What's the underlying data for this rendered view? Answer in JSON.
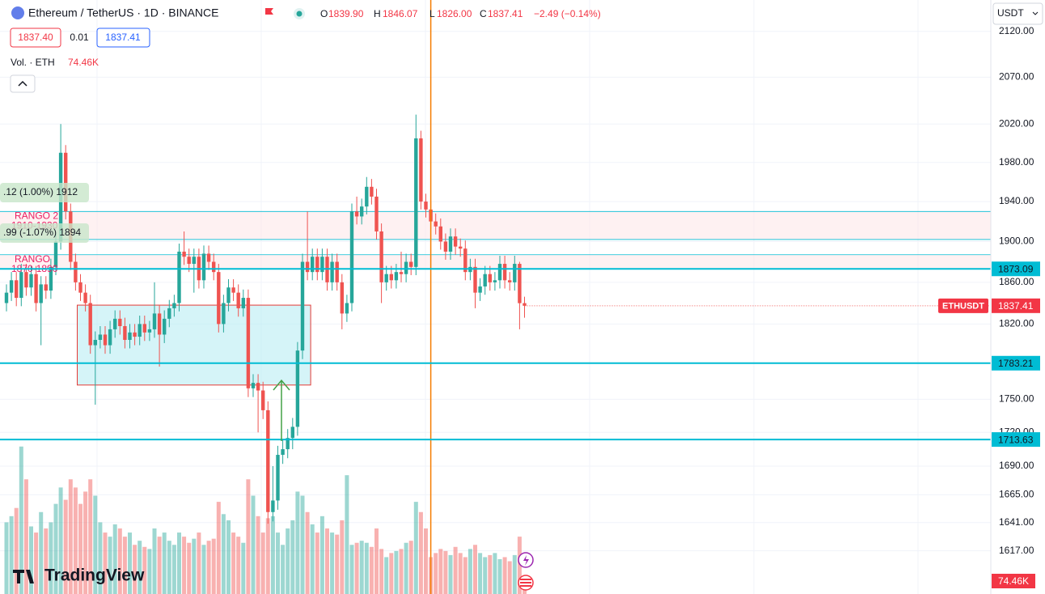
{
  "header": {
    "title": "Ethereum / TetherUS · 1D · BINANCE",
    "ohlc": [
      {
        "key": "O",
        "value": "1839.90"
      },
      {
        "key": "H",
        "value": "1846.07"
      },
      {
        "key": "L",
        "value": "1826.00"
      },
      {
        "key": "C",
        "value": "1837.41"
      }
    ],
    "change": "−2.49 (−0.14%)",
    "bid": "1837.40",
    "spread": "0.01",
    "ask": "1837.41",
    "volume_title": "Vol. · ETH",
    "volume_value": "74.46K",
    "currency": "USDT",
    "brand": "TradingView",
    "symbol_badge": "ETHUSDT"
  },
  "chart_data": {
    "type": "candlestick",
    "log_scale": true,
    "grid": true,
    "up_color": "#26a69a",
    "down_color": "#ef5350",
    "ylim": [
      1581,
      2155
    ],
    "yticks": [
      {
        "value": 2120,
        "label": "2120.00"
      },
      {
        "value": 2070,
        "label": "2070.00"
      },
      {
        "value": 2020,
        "label": "2020.00"
      },
      {
        "value": 1980,
        "label": "1980.00"
      },
      {
        "value": 1940,
        "label": "1940.00"
      },
      {
        "value": 1900,
        "label": "1900.00"
      },
      {
        "value": 1860,
        "label": "1860.00"
      },
      {
        "value": 1820,
        "label": "1820.00"
      },
      {
        "value": 1750,
        "label": "1750.00"
      },
      {
        "value": 1720,
        "label": "1720.00"
      },
      {
        "value": 1690,
        "label": "1690.00"
      },
      {
        "value": 1665,
        "label": "1665.00"
      },
      {
        "value": 1641,
        "label": "1641.00"
      },
      {
        "value": 1617,
        "label": "1617.00"
      }
    ],
    "open": [
      1840,
      1850,
      1862,
      1845,
      1870,
      1855,
      1868,
      1840,
      1858,
      1852,
      1875,
      1900,
      1990,
      1930,
      1880,
      1860,
      1850,
      1840,
      1800,
      1805,
      1810,
      1800,
      1815,
      1825,
      1818,
      1805,
      1812,
      1808,
      1820,
      1812,
      1815,
      1830,
      1810,
      1825,
      1835,
      1840,
      1890,
      1885,
      1878,
      1885,
      1862,
      1888,
      1880,
      1870,
      1820,
      1840,
      1855,
      1850,
      1835,
      1845,
      1760,
      1765,
      1758,
      1740,
      1650,
      1660,
      1700,
      1705,
      1715,
      1725,
      1795,
      1880,
      1870,
      1885,
      1870,
      1885,
      1860,
      1880,
      1860,
      1830,
      1840,
      1930,
      1925,
      1935,
      1955,
      1945,
      1910,
      1860,
      1868,
      1862,
      1870,
      1868,
      1880,
      1875,
      2005,
      1940,
      1932,
      1920,
      1915,
      1900,
      1890,
      1905,
      1895,
      1893,
      1870,
      1875,
      1850,
      1856,
      1868,
      1860,
      1862,
      1878,
      1862,
      1860,
      1878,
      1839.9
    ],
    "high": [
      1858,
      1870,
      1870,
      1878,
      1878,
      1876,
      1876,
      1866,
      1866,
      1883,
      1908,
      2020,
      1998,
      1938,
      1888,
      1868,
      1858,
      1848,
      1813,
      1818,
      1818,
      1823,
      1833,
      1833,
      1826,
      1820,
      1820,
      1828,
      1828,
      1823,
      1860,
      1838,
      1833,
      1843,
      1848,
      1898,
      1910,
      1893,
      1893,
      1893,
      1896,
      1896,
      1888,
      1878,
      1848,
      1863,
      1863,
      1858,
      1853,
      1853,
      1773,
      1773,
      1766,
      1748,
      1690,
      1708,
      1713,
      1723,
      1733,
      1803,
      1888,
      1930,
      1893,
      1893,
      1893,
      1893,
      1888,
      1888,
      1868,
      1848,
      1938,
      1945,
      1943,
      1965,
      1963,
      1953,
      1918,
      1876,
      1876,
      1878,
      1890,
      1888,
      1888,
      2030,
      2013,
      1948,
      1940,
      1928,
      1923,
      1908,
      1913,
      1913,
      1903,
      1901,
      1883,
      1883,
      1864,
      1876,
      1876,
      1870,
      1886,
      1886,
      1870,
      1886,
      1880,
      1846.07
    ],
    "low": [
      1832,
      1842,
      1837,
      1837,
      1847,
      1847,
      1832,
      1800,
      1844,
      1844,
      1867,
      1892,
      1922,
      1872,
      1852,
      1842,
      1832,
      1792,
      1745,
      1797,
      1792,
      1792,
      1807,
      1810,
      1797,
      1797,
      1800,
      1800,
      1804,
      1804,
      1807,
      1780,
      1802,
      1817,
      1827,
      1832,
      1877,
      1870,
      1850,
      1854,
      1854,
      1872,
      1862,
      1812,
      1812,
      1832,
      1842,
      1827,
      1827,
      1752,
      1752,
      1720,
      1732,
      1640,
      1642,
      1652,
      1692,
      1697,
      1705,
      1717,
      1787,
      1862,
      1862,
      1862,
      1862,
      1852,
      1852,
      1852,
      1815,
      1822,
      1832,
      1917,
      1917,
      1927,
      1937,
      1902,
      1840,
      1852,
      1854,
      1854,
      1860,
      1860,
      1867,
      1867,
      1932,
      1924,
      1912,
      1907,
      1892,
      1882,
      1882,
      1887,
      1885,
      1862,
      1862,
      1835,
      1842,
      1848,
      1852,
      1852,
      1854,
      1854,
      1852,
      1852,
      1815,
      1826
    ],
    "close": [
      1850,
      1862,
      1845,
      1870,
      1855,
      1868,
      1840,
      1858,
      1852,
      1875,
      1900,
      1990,
      1930,
      1880,
      1860,
      1850,
      1840,
      1800,
      1805,
      1810,
      1800,
      1815,
      1825,
      1818,
      1805,
      1812,
      1808,
      1820,
      1812,
      1815,
      1830,
      1810,
      1825,
      1835,
      1840,
      1890,
      1885,
      1878,
      1885,
      1862,
      1888,
      1880,
      1870,
      1820,
      1840,
      1855,
      1850,
      1835,
      1845,
      1760,
      1765,
      1758,
      1740,
      1650,
      1660,
      1700,
      1705,
      1715,
      1725,
      1795,
      1880,
      1870,
      1885,
      1870,
      1885,
      1860,
      1880,
      1860,
      1830,
      1840,
      1930,
      1925,
      1935,
      1955,
      1945,
      1910,
      1860,
      1868,
      1862,
      1870,
      1868,
      1880,
      1875,
      2005,
      1940,
      1932,
      1920,
      1915,
      1900,
      1890,
      1905,
      1895,
      1893,
      1870,
      1875,
      1850,
      1856,
      1868,
      1860,
      1862,
      1878,
      1862,
      1860,
      1878,
      1839.9,
      1837.41
    ],
    "volume": [
      350,
      380,
      420,
      720,
      560,
      330,
      300,
      400,
      320,
      350,
      440,
      520,
      460,
      560,
      520,
      440,
      500,
      560,
      480,
      350,
      300,
      280,
      340,
      320,
      280,
      300,
      240,
      260,
      230,
      220,
      320,
      280,
      300,
      260,
      240,
      300,
      280,
      250,
      270,
      300,
      240,
      260,
      270,
      450,
      390,
      360,
      300,
      280,
      250,
      560,
      480,
      380,
      300,
      370,
      380,
      300,
      240,
      320,
      360,
      500,
      480,
      400,
      340,
      300,
      380,
      320,
      300,
      290,
      360,
      580,
      240,
      250,
      260,
      250,
      230,
      320,
      220,
      180,
      200,
      210,
      220,
      250,
      260,
      450,
      400,
      320,
      180,
      200,
      220,
      210,
      190,
      230,
      200,
      180,
      220,
      240,
      200,
      180,
      190,
      200,
      170,
      180,
      160,
      190,
      280,
      74.46
    ],
    "volume_ylim": [
      0,
      2900
    ],
    "hlines": [
      1873.09,
      1783.21,
      1713.63
    ],
    "hline_color": "#00bcd4",
    "zones": [
      {
        "name": "RANGO 2",
        "range_label": "1910-1930",
        "low": 1902,
        "high": 1930
      },
      {
        "name": "RANGO",
        "range_label": "1870-1890",
        "low": 1873,
        "high": 1887
      }
    ],
    "box": {
      "start": 15,
      "end": 61,
      "low": 1763,
      "high": 1838
    },
    "measures": [
      ".12 (1.00%) 1912",
      ".99 (-1.07%) 1894"
    ],
    "crosshair_index": 86,
    "crosshair_color": "#f57c00"
  }
}
